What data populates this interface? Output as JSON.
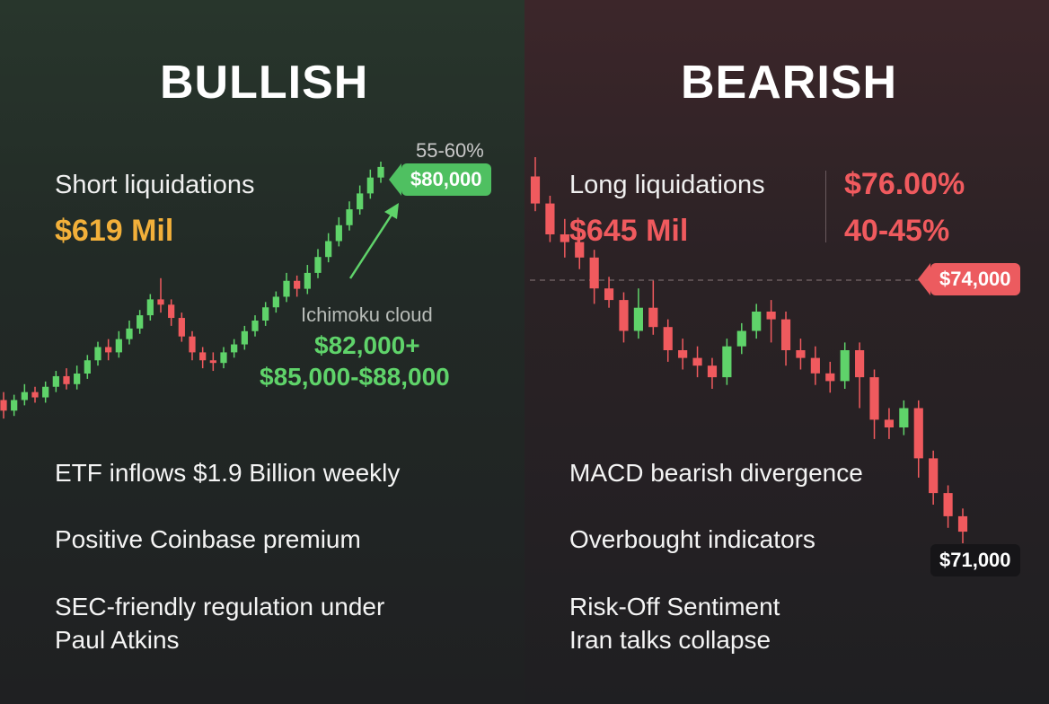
{
  "bullish": {
    "heading": "BULLISH",
    "liq_label": "Short liquidations",
    "liq_value": "$619 Mil",
    "probability": "55-60%",
    "target_tag": "$80,000",
    "indicator_label": "Ichimoku cloud",
    "indicator_level_1": "$82,000+",
    "indicator_level_2": "$85,000-$88,000",
    "points": [
      "ETF inflows $1.9 Billion weekly",
      "Positive Coinbase premium",
      "SEC-friendly regulation under",
      "Paul Atkins"
    ]
  },
  "bearish": {
    "heading": "BEARISH",
    "liq_label": "Long liquidations",
    "liq_value": "$645 Mil",
    "pct_1": "$76.00%",
    "pct_2": "40-45%",
    "level_tag": "$74,000",
    "bottom_tag": "$71,000",
    "points": [
      "MACD bearish divergence",
      "Overbought indicators",
      "Risk-Off Sentiment",
      "Iran talks collapse"
    ]
  },
  "colors": {
    "up": "#5fd36a",
    "down": "#f05a5e",
    "gold": "#f2b03a"
  },
  "chart_data": [
    {
      "type": "candlestick",
      "title": "BULLISH",
      "annotations": [
        "$80,000",
        "55-60%",
        "Ichimoku cloud",
        "$82,000+",
        "$85,000-$88,000"
      ],
      "candles": [
        [
          0.1,
          0.06,
          0.13,
          0.03
        ],
        [
          0.06,
          0.1,
          0.12,
          0.04
        ],
        [
          0.1,
          0.13,
          0.16,
          0.08
        ],
        [
          0.13,
          0.11,
          0.15,
          0.09
        ],
        [
          0.11,
          0.15,
          0.17,
          0.09
        ],
        [
          0.15,
          0.19,
          0.21,
          0.13
        ],
        [
          0.19,
          0.16,
          0.22,
          0.14
        ],
        [
          0.16,
          0.2,
          0.23,
          0.14
        ],
        [
          0.2,
          0.25,
          0.27,
          0.18
        ],
        [
          0.25,
          0.3,
          0.32,
          0.23
        ],
        [
          0.3,
          0.28,
          0.33,
          0.25
        ],
        [
          0.28,
          0.33,
          0.36,
          0.26
        ],
        [
          0.33,
          0.37,
          0.4,
          0.31
        ],
        [
          0.37,
          0.42,
          0.44,
          0.35
        ],
        [
          0.42,
          0.48,
          0.5,
          0.4
        ],
        [
          0.48,
          0.46,
          0.56,
          0.43
        ],
        [
          0.46,
          0.41,
          0.48,
          0.38
        ],
        [
          0.41,
          0.34,
          0.43,
          0.32
        ],
        [
          0.34,
          0.28,
          0.36,
          0.25
        ],
        [
          0.28,
          0.25,
          0.3,
          0.22
        ],
        [
          0.25,
          0.24,
          0.28,
          0.21
        ],
        [
          0.24,
          0.28,
          0.3,
          0.22
        ],
        [
          0.28,
          0.31,
          0.33,
          0.26
        ],
        [
          0.31,
          0.36,
          0.38,
          0.29
        ],
        [
          0.36,
          0.4,
          0.42,
          0.34
        ],
        [
          0.4,
          0.45,
          0.47,
          0.38
        ],
        [
          0.45,
          0.49,
          0.51,
          0.43
        ],
        [
          0.49,
          0.55,
          0.58,
          0.47
        ],
        [
          0.55,
          0.52,
          0.57,
          0.49
        ],
        [
          0.52,
          0.58,
          0.61,
          0.5
        ],
        [
          0.58,
          0.64,
          0.67,
          0.56
        ],
        [
          0.64,
          0.7,
          0.73,
          0.62
        ],
        [
          0.7,
          0.76,
          0.79,
          0.68
        ],
        [
          0.76,
          0.82,
          0.85,
          0.74
        ],
        [
          0.82,
          0.88,
          0.91,
          0.8
        ],
        [
          0.88,
          0.94,
          0.97,
          0.86
        ],
        [
          0.94,
          0.98,
          1.0,
          0.92
        ]
      ]
    },
    {
      "type": "candlestick",
      "title": "BEARISH",
      "annotations": [
        "$74,000",
        "$71,000"
      ],
      "candles": [
        [
          0.95,
          0.88,
          1.0,
          0.86
        ],
        [
          0.88,
          0.8,
          0.9,
          0.78
        ],
        [
          0.8,
          0.78,
          0.84,
          0.74
        ],
        [
          0.78,
          0.74,
          0.81,
          0.71
        ],
        [
          0.74,
          0.66,
          0.76,
          0.62
        ],
        [
          0.66,
          0.63,
          0.69,
          0.61
        ],
        [
          0.63,
          0.55,
          0.65,
          0.52
        ],
        [
          0.55,
          0.61,
          0.66,
          0.53
        ],
        [
          0.61,
          0.56,
          0.68,
          0.54
        ],
        [
          0.56,
          0.5,
          0.58,
          0.47
        ],
        [
          0.5,
          0.48,
          0.53,
          0.45
        ],
        [
          0.48,
          0.46,
          0.51,
          0.43
        ],
        [
          0.46,
          0.43,
          0.48,
          0.4
        ],
        [
          0.43,
          0.51,
          0.53,
          0.41
        ],
        [
          0.51,
          0.55,
          0.57,
          0.49
        ],
        [
          0.55,
          0.6,
          0.62,
          0.53
        ],
        [
          0.6,
          0.58,
          0.63,
          0.52
        ],
        [
          0.58,
          0.5,
          0.6,
          0.46
        ],
        [
          0.5,
          0.48,
          0.53,
          0.45
        ],
        [
          0.48,
          0.44,
          0.51,
          0.41
        ],
        [
          0.44,
          0.42,
          0.47,
          0.39
        ],
        [
          0.42,
          0.5,
          0.52,
          0.4
        ],
        [
          0.5,
          0.43,
          0.52,
          0.35
        ],
        [
          0.43,
          0.32,
          0.45,
          0.27
        ],
        [
          0.32,
          0.3,
          0.35,
          0.27
        ],
        [
          0.3,
          0.35,
          0.37,
          0.28
        ],
        [
          0.35,
          0.22,
          0.37,
          0.17
        ],
        [
          0.22,
          0.13,
          0.24,
          0.1
        ],
        [
          0.13,
          0.07,
          0.15,
          0.04
        ],
        [
          0.07,
          0.03,
          0.09,
          0.0
        ]
      ]
    }
  ]
}
